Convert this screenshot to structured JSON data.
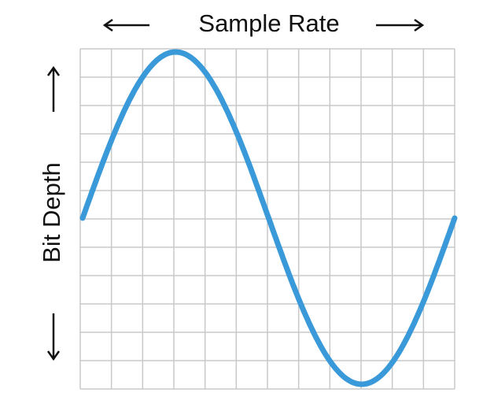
{
  "labels": {
    "x_axis": "Sample Rate",
    "y_axis": "Bit Depth"
  }
}
